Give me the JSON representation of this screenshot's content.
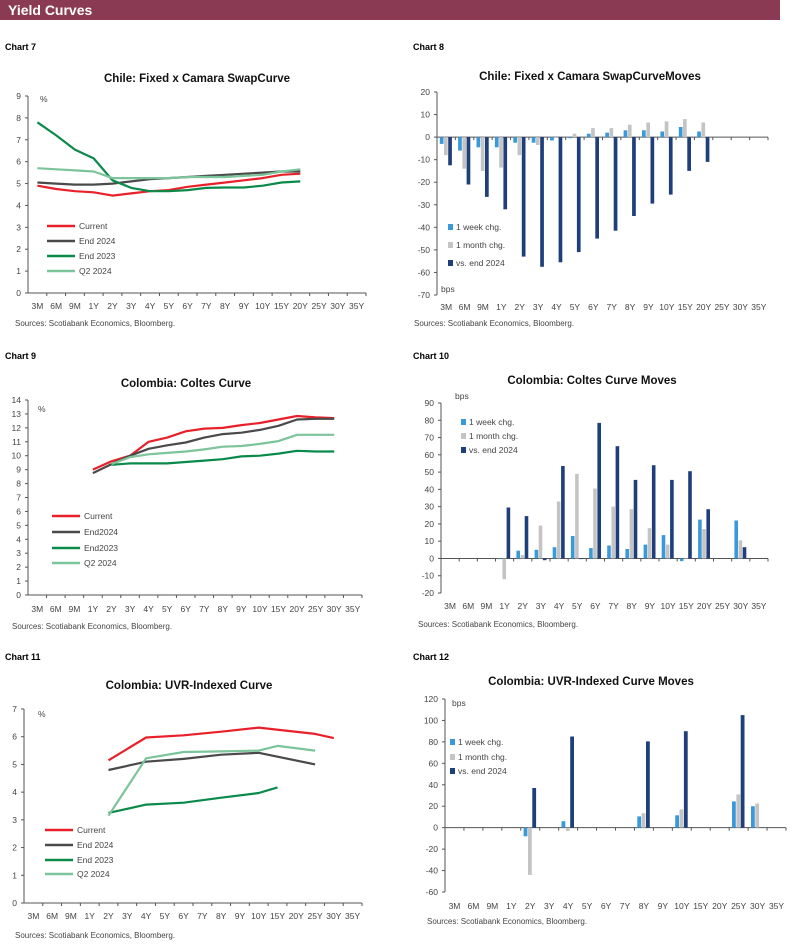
{
  "header": {
    "title": "Yield Curves",
    "color": "#8b3a54"
  },
  "colors": {
    "Current": "#e8202a",
    "End 2024": "#4a4a4a",
    "End 2023": "#0a8a4a",
    "Q2 2024": "#7cc49a",
    "1 week chg.": "#3a9ad9",
    "1 month chg.": "#c4c4c4",
    "vs. end 2024": "#1f3f7a"
  },
  "chart_data": [
    {
      "label": "Chart 7",
      "type": "line",
      "title": "Chile: Fixed x Camara SwapCurve",
      "unit": "%",
      "source": "Sources: Scotiabank Economics, Bloomberg.",
      "ylim": [
        0,
        9
      ],
      "ytick_step": 1,
      "grid": false,
      "legend": "bottom-left",
      "categories": [
        "3M",
        "6M",
        "9M",
        "1Y",
        "2Y",
        "3Y",
        "4Y",
        "5Y",
        "6Y",
        "7Y",
        "8Y",
        "9Y",
        "10Y",
        "15Y",
        "20Y",
        "25Y",
        "30Y",
        "35Y"
      ],
      "series": [
        {
          "name": "Current",
          "values": [
            4.9,
            4.75,
            4.65,
            4.6,
            4.45,
            4.55,
            4.65,
            4.7,
            4.85,
            4.95,
            5.05,
            5.15,
            5.25,
            5.4,
            5.45,
            null,
            null,
            null
          ]
        },
        {
          "name": "End 2024",
          "values": [
            5.05,
            5.0,
            4.95,
            4.95,
            5.0,
            5.1,
            5.2,
            5.25,
            5.3,
            5.35,
            5.4,
            5.45,
            5.5,
            5.55,
            5.55,
            null,
            null,
            null
          ]
        },
        {
          "name": "End 2023",
          "values": [
            7.8,
            7.2,
            6.55,
            6.15,
            5.15,
            4.8,
            4.65,
            4.65,
            4.7,
            4.8,
            4.82,
            4.82,
            4.9,
            5.05,
            5.1,
            null,
            null,
            null
          ]
        },
        {
          "name": "Q2 2024",
          "values": [
            5.7,
            5.65,
            5.6,
            5.55,
            5.25,
            5.25,
            5.25,
            5.25,
            5.3,
            5.3,
            5.3,
            5.35,
            5.4,
            5.55,
            5.65,
            null,
            null,
            null
          ]
        }
      ]
    },
    {
      "label": "Chart 8",
      "type": "bar",
      "title": "Chile: Fixed x Camara SwapCurveMoves",
      "unit": "bps",
      "source": "Sources: Scotiabank Economics, Bloomberg.",
      "ylim": [
        -70,
        20
      ],
      "ytick_step": 10,
      "grid": false,
      "legend": "bottom-left",
      "categories": [
        "3M",
        "6M",
        "9M",
        "1Y",
        "2Y",
        "3Y",
        "4Y",
        "5Y",
        "6Y",
        "7Y",
        "8Y",
        "9Y",
        "10Y",
        "15Y",
        "20Y",
        "25Y",
        "30Y",
        "35Y"
      ],
      "series": [
        {
          "name": "1 week chg.",
          "values": [
            -3,
            -6,
            -4.5,
            -4.5,
            -2.5,
            -2.5,
            -1.5,
            -0.5,
            1.5,
            2,
            3,
            3,
            2.5,
            4.5,
            2.5,
            null,
            null,
            null
          ]
        },
        {
          "name": "1 month chg.",
          "values": [
            -8,
            -14,
            -15,
            -13.5,
            -8,
            -3.5,
            0,
            1.5,
            4,
            4,
            5.5,
            6.5,
            7,
            8,
            6.5,
            null,
            null,
            null
          ]
        },
        {
          "name": "vs. end 2024",
          "values": [
            -12.5,
            -21,
            -26.5,
            -32,
            -53,
            -57.5,
            -55.5,
            -51,
            -45,
            -41.5,
            -35,
            -29.5,
            -25.5,
            -15,
            -11,
            null,
            null,
            null
          ]
        }
      ]
    },
    {
      "label": "Chart 9",
      "type": "line",
      "title": "Colombia: Coltes Curve",
      "unit": "%",
      "source": "Sources: Scotiabank Economics, Bloomberg.",
      "ylim": [
        0,
        14
      ],
      "ytick_step": 1,
      "grid": false,
      "legend": "bottom-left",
      "categories": [
        "3M",
        "6M",
        "9M",
        "1Y",
        "2Y",
        "3Y",
        "4Y",
        "5Y",
        "6Y",
        "7Y",
        "8Y",
        "9Y",
        "10Y",
        "15Y",
        "20Y",
        "25Y",
        "30Y",
        "35Y"
      ],
      "series": [
        {
          "name": "Current",
          "values": [
            null,
            null,
            null,
            9.0,
            9.6,
            10.0,
            11.0,
            11.3,
            11.75,
            11.95,
            12.0,
            12.2,
            12.35,
            12.6,
            12.85,
            12.75,
            12.7,
            null
          ]
        },
        {
          "name": "End2024",
          "values": [
            null,
            null,
            null,
            8.75,
            9.4,
            10.0,
            10.5,
            10.75,
            10.95,
            11.3,
            11.55,
            11.65,
            11.85,
            12.15,
            12.6,
            12.65,
            12.65,
            null
          ]
        },
        {
          "name": "End2023",
          "values": [
            null,
            null,
            null,
            null,
            9.35,
            9.45,
            9.45,
            9.45,
            9.55,
            9.65,
            9.75,
            9.95,
            10.0,
            10.15,
            10.35,
            10.3,
            10.3,
            null
          ]
        },
        {
          "name": "Q2 2024",
          "values": [
            null,
            null,
            null,
            null,
            9.4,
            9.9,
            10.1,
            10.2,
            10.3,
            10.45,
            10.65,
            10.7,
            10.85,
            11.05,
            11.5,
            11.5,
            11.5,
            null
          ]
        }
      ]
    },
    {
      "label": "Chart 10",
      "type": "bar",
      "title": "Colombia: Coltes Curve Moves",
      "unit": "bps",
      "source": "Sources: Scotiabank Economics, Bloomberg.",
      "ylim": [
        -20,
        90
      ],
      "ytick_step": 10,
      "grid": false,
      "legend": "top-left",
      "categories": [
        "3M",
        "6M",
        "9M",
        "1Y",
        "2Y",
        "3Y",
        "4Y",
        "5Y",
        "6Y",
        "7Y",
        "8Y",
        "9Y",
        "10Y",
        "15Y",
        "20Y",
        "25Y",
        "30Y",
        "35Y"
      ],
      "series": [
        {
          "name": "1 week chg.",
          "values": [
            null,
            null,
            null,
            0,
            4.5,
            5,
            6.5,
            13,
            6,
            7.5,
            5.5,
            8,
            13.5,
            -1.5,
            22.5,
            null,
            22,
            null
          ]
        },
        {
          "name": "1 month chg.",
          "values": [
            null,
            null,
            null,
            -12,
            2,
            19,
            33,
            49,
            40.5,
            30,
            28.5,
            17.5,
            8,
            0,
            17,
            null,
            10.5,
            null
          ]
        },
        {
          "name": "vs. end 2024",
          "values": [
            null,
            null,
            null,
            29.5,
            24.5,
            -1,
            53.5,
            0,
            78.5,
            65,
            45.5,
            54,
            45.5,
            50.5,
            28.5,
            null,
            6.5,
            null
          ]
        }
      ]
    },
    {
      "label": "Chart 11",
      "type": "line",
      "title": "Colombia: UVR-Indexed Curve",
      "unit": "%",
      "source": "Sources: Scotiabank Economics, Bloomberg.",
      "ylim": [
        0,
        7
      ],
      "ytick_step": 1,
      "grid": false,
      "legend": "bottom-left",
      "categories": [
        "3M",
        "6M",
        "9M",
        "1Y",
        "2Y",
        "3Y",
        "4Y",
        "5Y",
        "6Y",
        "7Y",
        "8Y",
        "9Y",
        "10Y",
        "15Y",
        "20Y",
        "25Y",
        "30Y",
        "35Y"
      ],
      "series": [
        {
          "name": "Current",
          "values": [
            null,
            null,
            null,
            null,
            5.15,
            null,
            5.97,
            null,
            6.05,
            null,
            6.18,
            null,
            6.33,
            null,
            null,
            6.1,
            5.95,
            null
          ]
        },
        {
          "name": "End 2024",
          "values": [
            null,
            null,
            null,
            null,
            4.8,
            null,
            5.1,
            null,
            5.2,
            null,
            5.35,
            null,
            5.42,
            null,
            null,
            5.0,
            null,
            null
          ]
        },
        {
          "name": "End 2023",
          "values": [
            null,
            null,
            null,
            null,
            3.25,
            null,
            3.55,
            null,
            3.62,
            null,
            3.8,
            null,
            3.97,
            4.17,
            null,
            null,
            null,
            null
          ]
        },
        {
          "name": "Q2 2024",
          "values": [
            null,
            null,
            null,
            null,
            3.15,
            null,
            5.22,
            null,
            5.45,
            null,
            5.47,
            null,
            5.5,
            5.67,
            null,
            5.5,
            null,
            null
          ]
        }
      ]
    },
    {
      "label": "Chart 12",
      "type": "bar",
      "title": "Colombia: UVR-Indexed Curve Moves",
      "unit": "bps",
      "source": "Sources: Scotiabank Economics, Bloomberg.",
      "ylim": [
        -60,
        120
      ],
      "ytick_step": 20,
      "grid": false,
      "legend": "top-left",
      "categories": [
        "3M",
        "6M",
        "9M",
        "1Y",
        "2Y",
        "3Y",
        "4Y",
        "5Y",
        "6Y",
        "7Y",
        "8Y",
        "9Y",
        "10Y",
        "15Y",
        "20Y",
        "25Y",
        "30Y",
        "35Y"
      ],
      "series": [
        {
          "name": "1 week chg.",
          "values": [
            null,
            null,
            null,
            null,
            -8,
            null,
            6,
            null,
            null,
            null,
            10.5,
            null,
            11.5,
            null,
            null,
            24.5,
            20,
            null
          ]
        },
        {
          "name": "1 month chg.",
          "values": [
            null,
            null,
            null,
            null,
            -44,
            null,
            -3,
            null,
            null,
            null,
            13.5,
            null,
            17,
            null,
            null,
            31,
            22.5,
            null
          ]
        },
        {
          "name": "vs. end 2024",
          "values": [
            null,
            null,
            null,
            null,
            37,
            null,
            85,
            null,
            null,
            null,
            80.5,
            null,
            90,
            null,
            null,
            105,
            null,
            null
          ]
        }
      ]
    }
  ]
}
